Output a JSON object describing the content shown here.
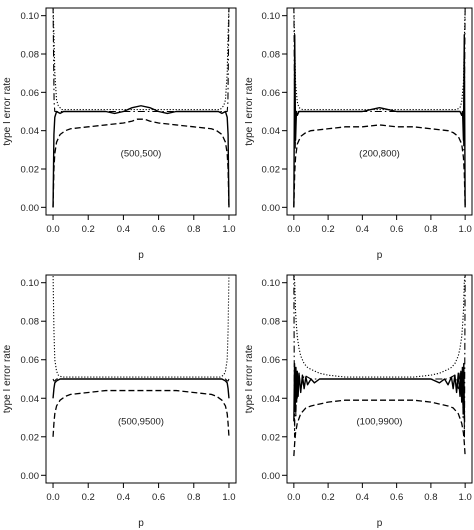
{
  "chart_data": [
    {
      "type": "line",
      "annotation": "(500,500)",
      "xlabel": "p",
      "ylabel": "type I error rate",
      "xlim": [
        0,
        1
      ],
      "ylim": [
        0,
        0.1
      ],
      "xticks": [
        "0.0",
        "0.2",
        "0.4",
        "0.6",
        "0.8",
        "1.0"
      ],
      "yticks": [
        "0.00",
        "0.02",
        "0.04",
        "0.06",
        "0.08",
        "0.10"
      ],
      "series": [
        {
          "style": "solid",
          "x": [
            0.0,
            0.005,
            0.01,
            0.02,
            0.04,
            0.06,
            0.1,
            0.2,
            0.3,
            0.35,
            0.4,
            0.45,
            0.5,
            0.55,
            0.6,
            0.65,
            0.7,
            0.8,
            0.9,
            0.94,
            0.96,
            0.98,
            0.99,
            0.995,
            1.0
          ],
          "y": [
            0.0,
            0.038,
            0.047,
            0.05,
            0.049,
            0.05,
            0.05,
            0.05,
            0.05,
            0.049,
            0.05,
            0.052,
            0.053,
            0.052,
            0.05,
            0.049,
            0.05,
            0.05,
            0.05,
            0.05,
            0.049,
            0.05,
            0.047,
            0.038,
            0.0
          ]
        },
        {
          "style": "dashed",
          "x": [
            0.0,
            0.005,
            0.01,
            0.02,
            0.04,
            0.07,
            0.1,
            0.2,
            0.3,
            0.4,
            0.45,
            0.48,
            0.5,
            0.52,
            0.55,
            0.6,
            0.7,
            0.8,
            0.9,
            0.93,
            0.96,
            0.98,
            0.99,
            0.995,
            1.0
          ],
          "y": [
            0.0,
            0.02,
            0.028,
            0.034,
            0.038,
            0.04,
            0.041,
            0.042,
            0.043,
            0.044,
            0.045,
            0.046,
            0.046,
            0.046,
            0.045,
            0.044,
            0.043,
            0.042,
            0.041,
            0.04,
            0.038,
            0.034,
            0.028,
            0.02,
            0.0
          ]
        },
        {
          "style": "dotted",
          "x": [
            0.0,
            0.005,
            0.01,
            0.02,
            0.03,
            0.05,
            0.1,
            0.3,
            0.5,
            0.7,
            0.9,
            0.95,
            0.97,
            0.98,
            0.99,
            0.995,
            1.0
          ],
          "y": [
            0.105,
            0.09,
            0.07,
            0.056,
            0.053,
            0.051,
            0.051,
            0.051,
            0.051,
            0.051,
            0.051,
            0.051,
            0.053,
            0.056,
            0.07,
            0.09,
            0.105
          ]
        },
        {
          "style": "dashdot",
          "x": [
            0.0,
            0.003,
            0.006,
            0.01,
            0.03,
            0.1,
            0.5,
            0.9,
            0.97,
            0.99,
            0.994,
            0.997,
            1.0
          ],
          "y": [
            0.105,
            0.08,
            0.055,
            0.05,
            0.05,
            0.05,
            0.05,
            0.05,
            0.05,
            0.05,
            0.055,
            0.08,
            0.105
          ]
        }
      ]
    },
    {
      "type": "line",
      "annotation": "(200,800)",
      "xlabel": "p",
      "ylabel": "type I error rate",
      "xlim": [
        0,
        1
      ],
      "ylim": [
        0,
        0.1
      ],
      "xticks": [
        "0.0",
        "0.2",
        "0.4",
        "0.6",
        "0.8",
        "1.0"
      ],
      "yticks": [
        "0.00",
        "0.02",
        "0.04",
        "0.06",
        "0.08",
        "0.10"
      ],
      "series": [
        {
          "style": "solid",
          "x": [
            0.0,
            0.005,
            0.01,
            0.015,
            0.02,
            0.03,
            0.05,
            0.1,
            0.2,
            0.3,
            0.4,
            0.45,
            0.5,
            0.55,
            0.6,
            0.7,
            0.8,
            0.9,
            0.95,
            0.97,
            0.98,
            0.985,
            0.99,
            0.995,
            1.0
          ],
          "y": [
            0.0,
            0.09,
            0.035,
            0.05,
            0.048,
            0.05,
            0.05,
            0.05,
            0.05,
            0.05,
            0.05,
            0.051,
            0.052,
            0.051,
            0.05,
            0.05,
            0.05,
            0.05,
            0.05,
            0.05,
            0.048,
            0.05,
            0.035,
            0.09,
            0.0
          ]
        },
        {
          "style": "dashed",
          "x": [
            0.0,
            0.005,
            0.01,
            0.02,
            0.04,
            0.07,
            0.1,
            0.2,
            0.3,
            0.4,
            0.5,
            0.6,
            0.7,
            0.8,
            0.9,
            0.93,
            0.96,
            0.98,
            0.99,
            0.995,
            1.0
          ],
          "y": [
            0.0,
            0.018,
            0.026,
            0.033,
            0.037,
            0.039,
            0.04,
            0.041,
            0.042,
            0.042,
            0.043,
            0.042,
            0.042,
            0.041,
            0.04,
            0.039,
            0.037,
            0.033,
            0.026,
            0.018,
            0.0
          ]
        },
        {
          "style": "dotted",
          "x": [
            0.0,
            0.005,
            0.01,
            0.02,
            0.03,
            0.05,
            0.1,
            0.3,
            0.5,
            0.7,
            0.9,
            0.95,
            0.97,
            0.98,
            0.99,
            0.995,
            1.0
          ],
          "y": [
            0.105,
            0.085,
            0.065,
            0.055,
            0.052,
            0.051,
            0.051,
            0.051,
            0.051,
            0.051,
            0.051,
            0.051,
            0.052,
            0.055,
            0.065,
            0.085,
            0.105
          ]
        },
        {
          "style": "dashdot",
          "x": [
            0.0,
            0.004,
            0.008,
            0.012,
            0.03,
            0.1,
            0.5,
            0.9,
            0.97,
            0.988,
            0.992,
            0.996,
            1.0
          ],
          "y": [
            0.105,
            0.06,
            0.03,
            0.05,
            0.05,
            0.05,
            0.05,
            0.05,
            0.05,
            0.05,
            0.03,
            0.06,
            0.105
          ]
        }
      ]
    },
    {
      "type": "line",
      "annotation": "(500,9500)",
      "xlabel": "p",
      "ylabel": "type I error rate",
      "xlim": [
        0,
        1
      ],
      "ylim": [
        0,
        0.1
      ],
      "xticks": [
        "0.0",
        "0.2",
        "0.4",
        "0.6",
        "0.8",
        "1.0"
      ],
      "yticks": [
        "0.00",
        "0.02",
        "0.04",
        "0.06",
        "0.08",
        "0.10"
      ],
      "series": [
        {
          "style": "solid",
          "x": [
            0.0,
            0.005,
            0.01,
            0.02,
            0.04,
            0.08,
            0.2,
            0.4,
            0.5,
            0.6,
            0.8,
            0.92,
            0.96,
            0.98,
            0.99,
            0.995,
            1.0
          ],
          "y": [
            0.04,
            0.045,
            0.048,
            0.049,
            0.05,
            0.05,
            0.05,
            0.05,
            0.05,
            0.05,
            0.05,
            0.05,
            0.05,
            0.049,
            0.048,
            0.045,
            0.04
          ]
        },
        {
          "style": "dashed",
          "x": [
            0.0,
            0.005,
            0.01,
            0.02,
            0.04,
            0.07,
            0.1,
            0.2,
            0.3,
            0.4,
            0.5,
            0.6,
            0.7,
            0.8,
            0.9,
            0.93,
            0.96,
            0.98,
            0.99,
            0.995,
            1.0
          ],
          "y": [
            0.02,
            0.027,
            0.032,
            0.036,
            0.039,
            0.041,
            0.042,
            0.043,
            0.044,
            0.044,
            0.044,
            0.044,
            0.044,
            0.043,
            0.042,
            0.041,
            0.039,
            0.036,
            0.032,
            0.027,
            0.02
          ]
        },
        {
          "style": "dotted",
          "x": [
            0.0,
            0.005,
            0.01,
            0.02,
            0.03,
            0.05,
            0.1,
            0.3,
            0.5,
            0.7,
            0.9,
            0.95,
            0.97,
            0.98,
            0.99,
            0.995,
            1.0
          ],
          "y": [
            0.105,
            0.075,
            0.06,
            0.054,
            0.052,
            0.051,
            0.051,
            0.051,
            0.051,
            0.051,
            0.051,
            0.051,
            0.052,
            0.054,
            0.06,
            0.075,
            0.105
          ]
        },
        {
          "style": "dashdot",
          "x": [
            0.0,
            0.005,
            0.01,
            0.02,
            0.05,
            0.1,
            0.5,
            0.9,
            0.95,
            0.98,
            0.99,
            0.995,
            1.0
          ],
          "y": [
            0.05,
            0.049,
            0.049,
            0.05,
            0.05,
            0.05,
            0.05,
            0.05,
            0.05,
            0.05,
            0.049,
            0.049,
            0.05
          ]
        }
      ]
    },
    {
      "type": "line",
      "annotation": "(100,9900)",
      "xlabel": "p",
      "ylabel": "type I error rate",
      "xlim": [
        0,
        1
      ],
      "ylim": [
        0,
        0.1
      ],
      "xticks": [
        "0.0",
        "0.2",
        "0.4",
        "0.6",
        "0.8",
        "1.0"
      ],
      "yticks": [
        "0.00",
        "0.02",
        "0.04",
        "0.06",
        "0.08",
        "0.10"
      ],
      "series": [
        {
          "style": "solid",
          "x": [
            0.0,
            0.004,
            0.008,
            0.012,
            0.016,
            0.02,
            0.025,
            0.03,
            0.04,
            0.05,
            0.06,
            0.07,
            0.08,
            0.1,
            0.12,
            0.15,
            0.2,
            0.3,
            0.5,
            0.7,
            0.8,
            0.85,
            0.88,
            0.9,
            0.92,
            0.93,
            0.94,
            0.95,
            0.96,
            0.97,
            0.975,
            0.98,
            0.984,
            0.988,
            0.992,
            0.996,
            1.0
          ],
          "y": [
            0.028,
            0.058,
            0.035,
            0.056,
            0.038,
            0.054,
            0.041,
            0.053,
            0.043,
            0.052,
            0.045,
            0.051,
            0.047,
            0.05,
            0.048,
            0.05,
            0.05,
            0.05,
            0.05,
            0.05,
            0.05,
            0.048,
            0.05,
            0.047,
            0.051,
            0.045,
            0.052,
            0.043,
            0.053,
            0.041,
            0.054,
            0.038,
            0.056,
            0.035,
            0.058,
            0.028,
            0.028
          ]
        },
        {
          "style": "dashed",
          "x": [
            0.0,
            0.005,
            0.01,
            0.02,
            0.04,
            0.07,
            0.1,
            0.2,
            0.3,
            0.4,
            0.5,
            0.6,
            0.7,
            0.8,
            0.9,
            0.93,
            0.96,
            0.98,
            0.99,
            0.995,
            1.0
          ],
          "y": [
            0.01,
            0.017,
            0.022,
            0.027,
            0.032,
            0.035,
            0.036,
            0.038,
            0.039,
            0.039,
            0.039,
            0.039,
            0.039,
            0.038,
            0.036,
            0.035,
            0.032,
            0.027,
            0.022,
            0.017,
            0.01
          ]
        },
        {
          "style": "dotted",
          "x": [
            0.0,
            0.005,
            0.01,
            0.015,
            0.02,
            0.03,
            0.04,
            0.06,
            0.08,
            0.1,
            0.15,
            0.2,
            0.3,
            0.5,
            0.7,
            0.8,
            0.85,
            0.9,
            0.92,
            0.94,
            0.96,
            0.97,
            0.98,
            0.985,
            0.99,
            0.995,
            1.0
          ],
          "y": [
            0.105,
            0.1,
            0.085,
            0.078,
            0.072,
            0.066,
            0.062,
            0.058,
            0.056,
            0.055,
            0.053,
            0.052,
            0.051,
            0.051,
            0.051,
            0.052,
            0.053,
            0.055,
            0.056,
            0.058,
            0.062,
            0.066,
            0.072,
            0.078,
            0.085,
            0.1,
            0.105
          ]
        },
        {
          "style": "dashdot",
          "x": [
            0.0,
            0.004,
            0.008,
            0.012,
            0.016,
            0.02,
            0.03,
            0.04,
            0.06,
            0.1,
            0.3,
            0.5,
            0.7,
            0.9,
            0.94,
            0.96,
            0.97,
            0.98,
            0.984,
            0.988,
            0.992,
            0.996,
            1.0
          ],
          "y": [
            0.105,
            0.02,
            0.045,
            0.03,
            0.052,
            0.04,
            0.053,
            0.045,
            0.052,
            0.05,
            0.05,
            0.05,
            0.05,
            0.05,
            0.052,
            0.045,
            0.053,
            0.04,
            0.052,
            0.03,
            0.045,
            0.02,
            0.105
          ]
        }
      ]
    }
  ]
}
